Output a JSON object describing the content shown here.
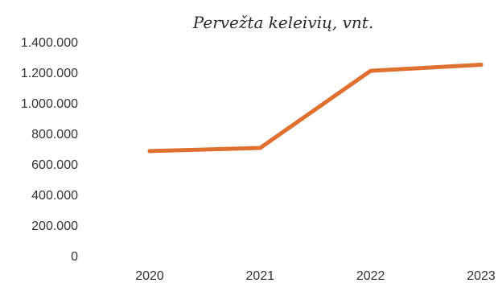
{
  "chart_data": {
    "type": "line",
    "title": "Pervežta keleivių, vnt.",
    "xlabel": "",
    "ylabel": "",
    "categories": [
      "2020",
      "2021",
      "2022",
      "2023"
    ],
    "series": [
      {
        "values": [
          685000,
          705000,
          1210000,
          1250000
        ],
        "color": "#e07030"
      }
    ],
    "ylim": [
      0,
      1400000
    ],
    "yticks": [
      0,
      200000,
      400000,
      600000,
      800000,
      1000000,
      1200000,
      1400000
    ],
    "ytick_labels": [
      "0",
      "200.000",
      "400.000",
      "600.000",
      "800.000",
      "1.000.000",
      "1.200.000",
      "1.400.000"
    ],
    "grid": false,
    "legend": "none"
  }
}
